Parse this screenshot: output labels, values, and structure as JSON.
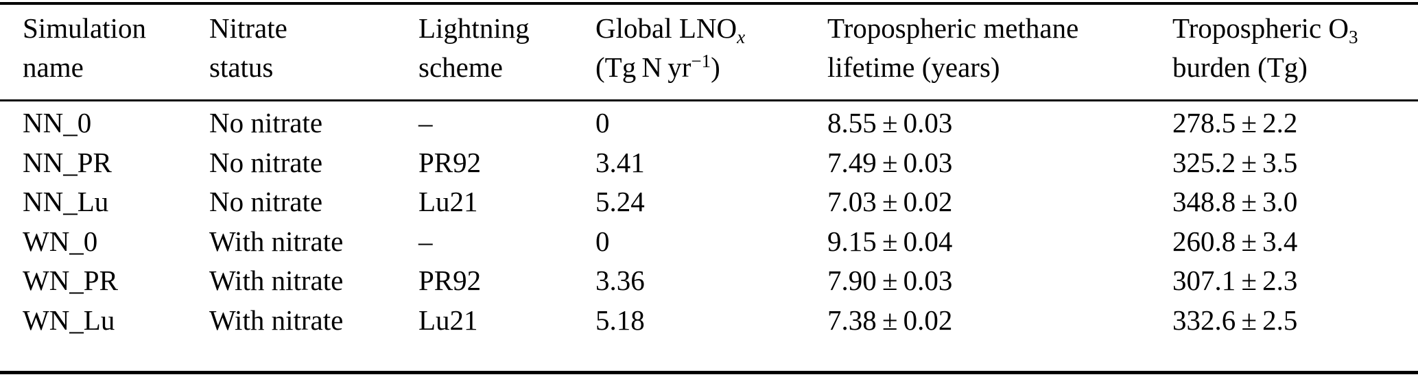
{
  "colors": {
    "text": "#000000",
    "background": "#ffffff",
    "rule": "#000000"
  },
  "header": {
    "simulation": {
      "line1": "Simulation",
      "line2": "name"
    },
    "nitrate": {
      "line1": "Nitrate",
      "line2": "status"
    },
    "lightning": {
      "line1": "Lightning",
      "line2": "scheme"
    },
    "lnox": {
      "line1_text": "Global LNO",
      "line1_sub": "x",
      "line2_open": "(Tg N yr",
      "line2_sup": "−1",
      "line2_close": ")"
    },
    "methane": {
      "line1": "Tropospheric methane",
      "line2": "lifetime (years)"
    },
    "ozone": {
      "line1_text": "Tropospheric O",
      "line1_sub": "3",
      "line2": "burden (Tg)"
    }
  },
  "rows": [
    {
      "simulation_name": "NN_0",
      "nitrate_status": "No nitrate",
      "lightning_scheme": "–",
      "global_lnox": "0",
      "methane_lifetime": "8.55 ± 0.03",
      "o3_burden": "278.5 ± 2.2"
    },
    {
      "simulation_name": "NN_PR",
      "nitrate_status": "No nitrate",
      "lightning_scheme": "PR92",
      "global_lnox": "3.41",
      "methane_lifetime": "7.49 ± 0.03",
      "o3_burden": "325.2 ± 3.5"
    },
    {
      "simulation_name": "NN_Lu",
      "nitrate_status": "No nitrate",
      "lightning_scheme": "Lu21",
      "global_lnox": "5.24",
      "methane_lifetime": "7.03 ± 0.02",
      "o3_burden": "348.8 ± 3.0"
    },
    {
      "simulation_name": "WN_0",
      "nitrate_status": "With nitrate",
      "lightning_scheme": "–",
      "global_lnox": "0",
      "methane_lifetime": "9.15 ± 0.04",
      "o3_burden": "260.8 ± 3.4"
    },
    {
      "simulation_name": "WN_PR",
      "nitrate_status": "With nitrate",
      "lightning_scheme": "PR92",
      "global_lnox": "3.36",
      "methane_lifetime": "7.90 ± 0.03",
      "o3_burden": "307.1 ± 2.3"
    },
    {
      "simulation_name": "WN_Lu",
      "nitrate_status": "With nitrate",
      "lightning_scheme": "Lu21",
      "global_lnox": "5.18",
      "methane_lifetime": "7.38 ± 0.02",
      "o3_burden": "332.6 ± 2.5"
    }
  ]
}
